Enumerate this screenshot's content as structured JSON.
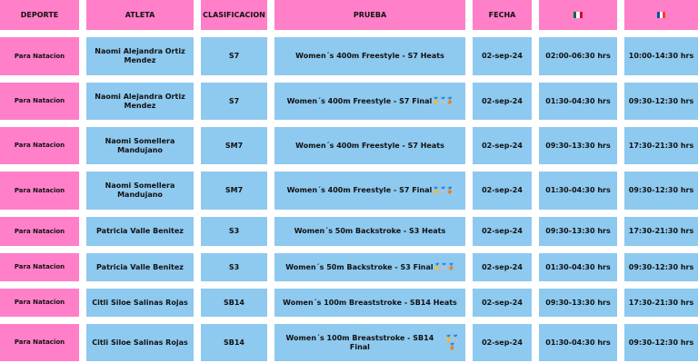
{
  "headers": {
    "deporte": "DEPORTE",
    "atleta": "ATLETA",
    "clasificacion": "CLASIFICACION",
    "prueba": "PRUEBA",
    "fecha": "FECHA",
    "flag_mx": "mexico-flag-icon",
    "flag_fr": "france-flag-icon"
  },
  "colors": {
    "pink": "#ff7fc8",
    "blue": "#8ec9ef"
  },
  "rows": [
    {
      "deporte": "Para Natacion",
      "atleta": "Naomi Alejandra Ortiz Mendez",
      "clasificacion": "S7",
      "prueba": "Women´s 400m Freestyle - S7 Heats",
      "medals": "",
      "fecha": "02-sep-24",
      "hora_mx": "02:00-06:30 hrs",
      "hora_fr": "10:00-14:30 hrs"
    },
    {
      "deporte": "Para Natacion",
      "atleta": "Naomi Alejandra Ortiz Mendez",
      "clasificacion": "S7",
      "prueba": "Women´s 400m Freestyle - S7 Final",
      "medals": "🥇🥈🥉",
      "fecha": "02-sep-24",
      "hora_mx": "01:30-04:30 hrs",
      "hora_fr": "09:30-12:30 hrs"
    },
    {
      "deporte": "Para Natacion",
      "atleta": "Naomi Somellera Mandujano",
      "clasificacion": "SM7",
      "prueba": "Women´s 400m Freestyle - S7 Heats",
      "medals": "",
      "fecha": "02-sep-24",
      "hora_mx": "09:30-13:30 hrs",
      "hora_fr": "17:30-21:30 hrs"
    },
    {
      "deporte": "Para Natacion",
      "atleta": "Naomi Somellera Mandujano",
      "clasificacion": "SM7",
      "prueba": "Women´s 400m Freestyle - S7 Final",
      "medals": "🥇🥈🥉",
      "fecha": "02-sep-24",
      "hora_mx": "01:30-04:30 hrs",
      "hora_fr": "09:30-12:30 hrs"
    },
    {
      "deporte": "Para Natacion",
      "atleta": "Patricia Valle Benitez",
      "clasificacion": "S3",
      "prueba": "Women´s 50m Backstroke - S3 Heats",
      "medals": "",
      "fecha": "02-sep-24",
      "hora_mx": "09:30-13:30 hrs",
      "hora_fr": "17:30-21:30 hrs"
    },
    {
      "deporte": "Para Natacion",
      "atleta": "Patricia Valle Benitez",
      "clasificacion": "S3",
      "prueba": "Women´s 50m Backstroke - S3 Final",
      "medals": "🥇🥈🥉",
      "fecha": "02-sep-24",
      "hora_mx": "01:30-04:30 hrs",
      "hora_fr": "09:30-12:30 hrs"
    },
    {
      "deporte": "Para Natacion",
      "atleta": "Citli Siloe Salinas Rojas",
      "clasificacion": "SB14",
      "prueba": "Women´s 100m Breaststroke - SB14 Heats",
      "medals": "",
      "fecha": "02-sep-24",
      "hora_mx": "09:30-13:30 hrs",
      "hora_fr": "17:30-21:30 hrs"
    },
    {
      "deporte": "Para Natacion",
      "atleta": "Citli Siloe Salinas Rojas",
      "clasificacion": "SB14",
      "prueba": "Women´s 100m Breaststroke - SB14 Final",
      "medals": "🥇🥈🥉",
      "fecha": "02-sep-24",
      "hora_mx": "01:30-04:30 hrs",
      "hora_fr": "09:30-12:30 hrs"
    }
  ]
}
